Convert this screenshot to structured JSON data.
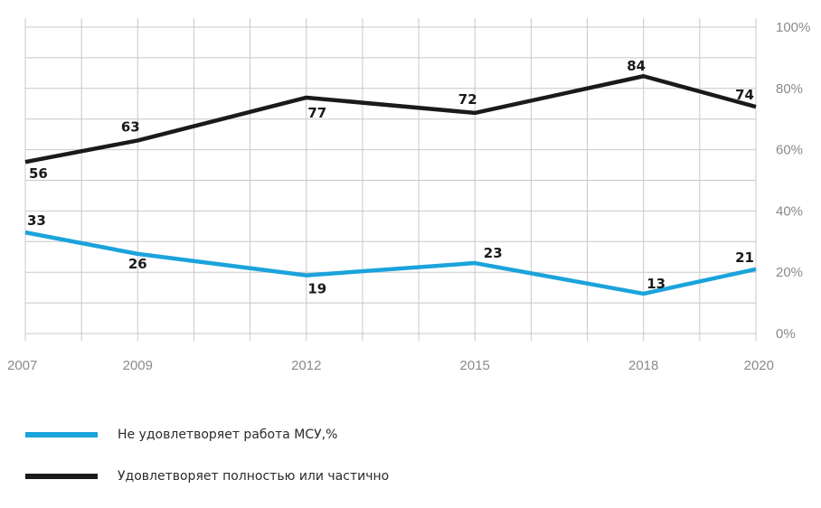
{
  "chart_data": {
    "type": "line",
    "x": [
      "2007",
      "2009",
      "2012",
      "2015",
      "2018",
      "2020"
    ],
    "ylim": [
      0,
      100
    ],
    "y_ticks": [
      "0%",
      "20%",
      "40%",
      "60%",
      "80%",
      "100%"
    ],
    "grid": true,
    "legend_position": "bottom-left",
    "series": [
      {
        "name": "Не удовлетворяет работа МСУ,%",
        "color": "#1ba3db",
        "values": [
          33,
          26,
          19,
          23,
          13,
          21
        ],
        "labels": [
          "33",
          "26",
          "19",
          "23",
          "13",
          "21"
        ]
      },
      {
        "name": "Удовлетворяет полностью или частично",
        "color": "#1a1a1a",
        "values": [
          56,
          63,
          77,
          72,
          84,
          74
        ],
        "labels": [
          "56",
          "63",
          "77",
          "72",
          "84",
          "74"
        ]
      }
    ]
  }
}
